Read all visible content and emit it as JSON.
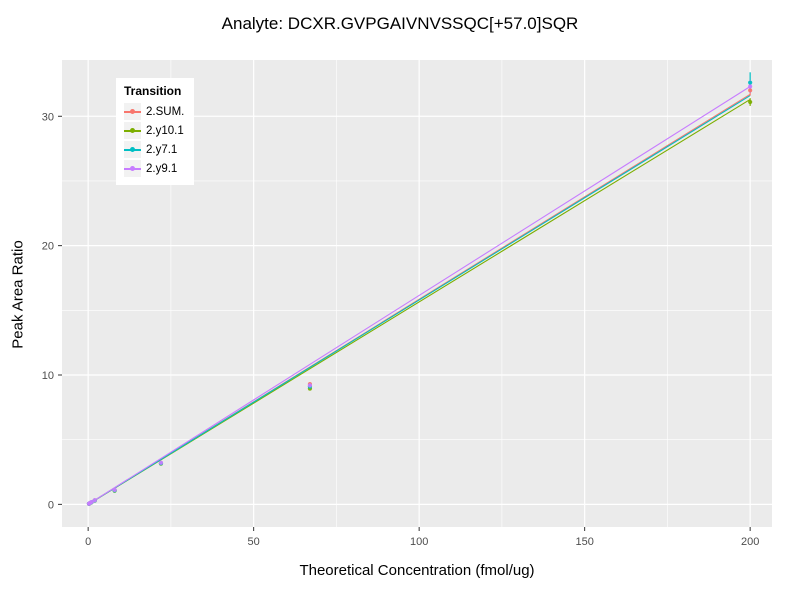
{
  "chart_data": {
    "type": "scatter",
    "title": "Analyte: DCXR.GVPGAIVNVSSQC[+57.0]SQR",
    "xlabel": "Theoretical Concentration (fmol/ug)",
    "ylabel": "Peak Area Ratio",
    "legend_title": "Transition",
    "legend_position": "top-left-inside",
    "grid": true,
    "panel_bg": "#EBEBEB",
    "grid_color": "#FFFFFF",
    "tick_label_color": "#4D4D4D",
    "xlim": [
      -7.9,
      206.6
    ],
    "ylim": [
      -1.75,
      34.35
    ],
    "xticks": [
      0,
      50,
      100,
      150,
      200
    ],
    "yticks": [
      0,
      10,
      20,
      30
    ],
    "xminor": [
      25,
      75,
      125,
      175
    ],
    "yminor": [
      5,
      15,
      25
    ],
    "x": [
      0.25,
      0.5,
      1,
      2,
      8,
      22,
      67,
      200
    ],
    "series": [
      {
        "name": "2.SUM.",
        "color": "#F8766D",
        "y": [
          0.05,
          0.09,
          0.16,
          0.31,
          1.1,
          3.2,
          9.3,
          32.0
        ],
        "fit_end": 31.7,
        "err_last": 0.4
      },
      {
        "name": "2.y10.1",
        "color": "#7CAE00",
        "y": [
          0.04,
          0.08,
          0.15,
          0.29,
          1.05,
          3.15,
          8.95,
          31.1
        ],
        "fit_end": 31.3,
        "err_last": 0.3
      },
      {
        "name": "2.y7.1",
        "color": "#00BFC4",
        "y": [
          0.05,
          0.09,
          0.16,
          0.3,
          1.08,
          3.18,
          9.1,
          32.6
        ],
        "fit_end": 31.6,
        "err_last": 0.8
      },
      {
        "name": "2.y9.1",
        "color": "#C77CFF",
        "y": [
          0.05,
          0.1,
          0.17,
          0.32,
          1.12,
          3.22,
          9.2,
          32.3
        ],
        "fit_end": 32.3,
        "err_last": 0.5
      }
    ]
  }
}
